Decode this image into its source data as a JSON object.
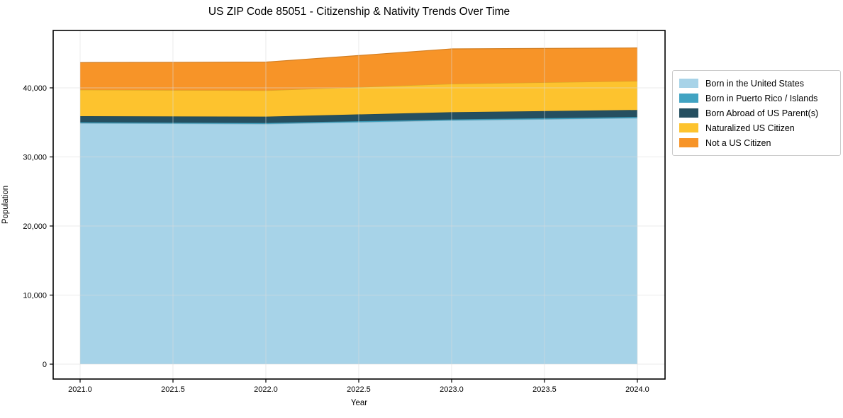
{
  "figure": {
    "background": "#ffffff",
    "plot_border_color": "#000000",
    "grid_color": "#dcdcdc",
    "text_color": "#000000"
  },
  "chart_data": {
    "type": "area",
    "stacked": true,
    "title": "US ZIP Code 85051 - Citizenship & Nativity Trends Over Time",
    "xlabel": "Year",
    "ylabel": "Population",
    "x": [
      2021,
      2022,
      2023,
      2024
    ],
    "series": [
      {
        "name": "Born in the United States",
        "color": "#a7d3e8",
        "values": [
          34870,
          34770,
          35280,
          35620
        ]
      },
      {
        "name": "Born in Puerto Rico / Islands",
        "color": "#41a3c2",
        "values": [
          150,
          150,
          150,
          170
        ]
      },
      {
        "name": "Born Abroad of US Parent(s)",
        "color": "#254f60",
        "values": [
          880,
          910,
          1050,
          1010
        ]
      },
      {
        "name": "Naturalized US Citizen",
        "color": "#fdc32e",
        "values": [
          3820,
          3790,
          4100,
          4190
        ]
      },
      {
        "name": "Not a US Citizen",
        "color": "#f79428",
        "values": [
          3940,
          4110,
          5060,
          4790
        ]
      }
    ],
    "totals": [
      43660,
      43730,
      45640,
      45780
    ],
    "xticks": {
      "values": [
        2021.0,
        2021.5,
        2022.0,
        2022.5,
        2023.0,
        2023.5,
        2024.0
      ],
      "labels": [
        "2021.0",
        "2021.5",
        "2022.0",
        "2022.5",
        "2023.0",
        "2023.5",
        "2024.0"
      ]
    },
    "yticks": {
      "values": [
        0,
        10000,
        20000,
        30000,
        40000
      ],
      "labels": [
        "0",
        "10,000",
        "20,000",
        "30,000",
        "40,000"
      ]
    },
    "xlim": [
      2020.855,
      2024.149
    ],
    "ylim": [
      -2154,
      48308
    ],
    "grid": true,
    "legend_position": "right"
  }
}
